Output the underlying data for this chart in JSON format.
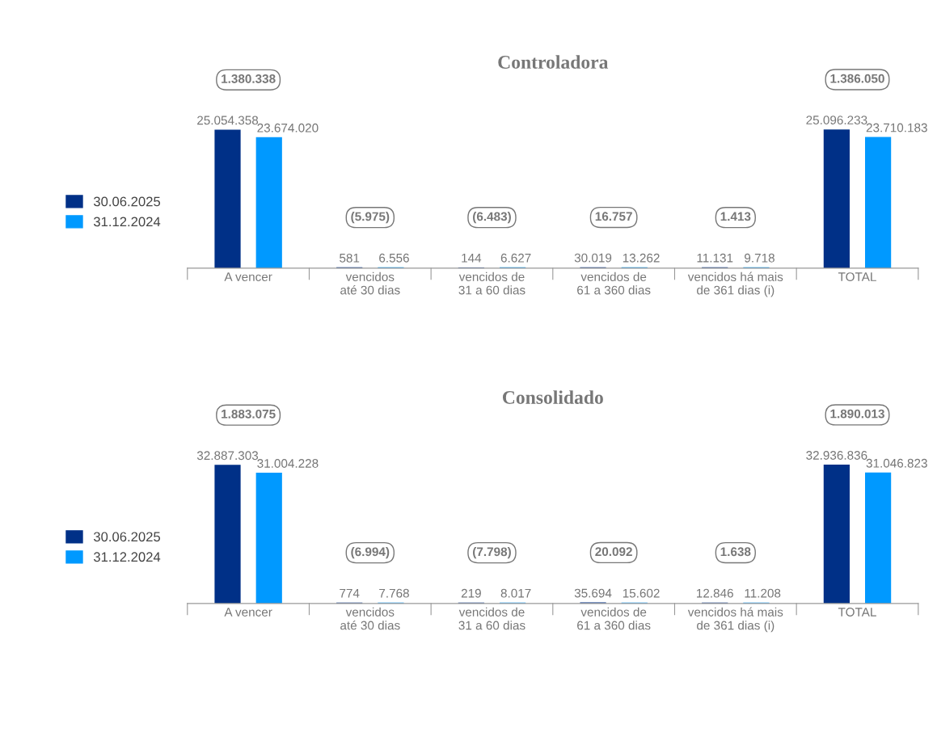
{
  "chart_data": [
    {
      "type": "bar",
      "title": "Controladora",
      "categories": [
        "A vencer",
        "vencidos\naté 30 dias",
        "vencidos de\n31 a 60 dias",
        "vencidos de\n61 a 360 dias",
        "vencidos há mais\nde 361 dias (i)",
        "TOTAL"
      ],
      "series": [
        {
          "name": "30.06.2025",
          "color": "#003087",
          "values": [
            25054358,
            581,
            144,
            30019,
            11131,
            25096233
          ],
          "value_labels": [
            "25.054.358",
            "581",
            "144",
            "30.019",
            "11.131",
            "25.096.233"
          ]
        },
        {
          "name": "31.12.2024",
          "color": "#0099ff",
          "values": [
            23674020,
            6556,
            6627,
            13262,
            9718,
            23710183
          ],
          "value_labels": [
            "23.674.020",
            "6.556",
            "6.627",
            "13.262",
            "9.718",
            "23.710.183"
          ]
        }
      ],
      "annotations": [
        "1.380.338",
        "(5.975)",
        "(6.483)",
        "16.757",
        "1.413",
        "1.386.050"
      ],
      "legend": "left"
    },
    {
      "type": "bar",
      "title": "Consolidado",
      "categories": [
        "A vencer",
        "vencidos\naté 30 dias",
        "vencidos de\n31 a 60 dias",
        "vencidos de\n61 a 360 dias",
        "vencidos há mais\nde 361 dias (i)",
        "TOTAL"
      ],
      "series": [
        {
          "name": "30.06.2025",
          "color": "#003087",
          "values": [
            32887303,
            774,
            219,
            35694,
            12846,
            32936836
          ],
          "value_labels": [
            "32.887.303",
            "774",
            "219",
            "35.694",
            "12.846",
            "32.936.836"
          ]
        },
        {
          "name": "31.12.2024",
          "color": "#0099ff",
          "values": [
            31004228,
            7768,
            8017,
            15602,
            11208,
            31046823
          ],
          "value_labels": [
            "31.004.228",
            "7.768",
            "8.017",
            "15.602",
            "11.208",
            "31.046.823"
          ]
        }
      ],
      "annotations": [
        "1.883.075",
        "(6.994)",
        "(7.798)",
        "20.092",
        "1.638",
        "1.890.013"
      ],
      "legend": "left"
    }
  ]
}
